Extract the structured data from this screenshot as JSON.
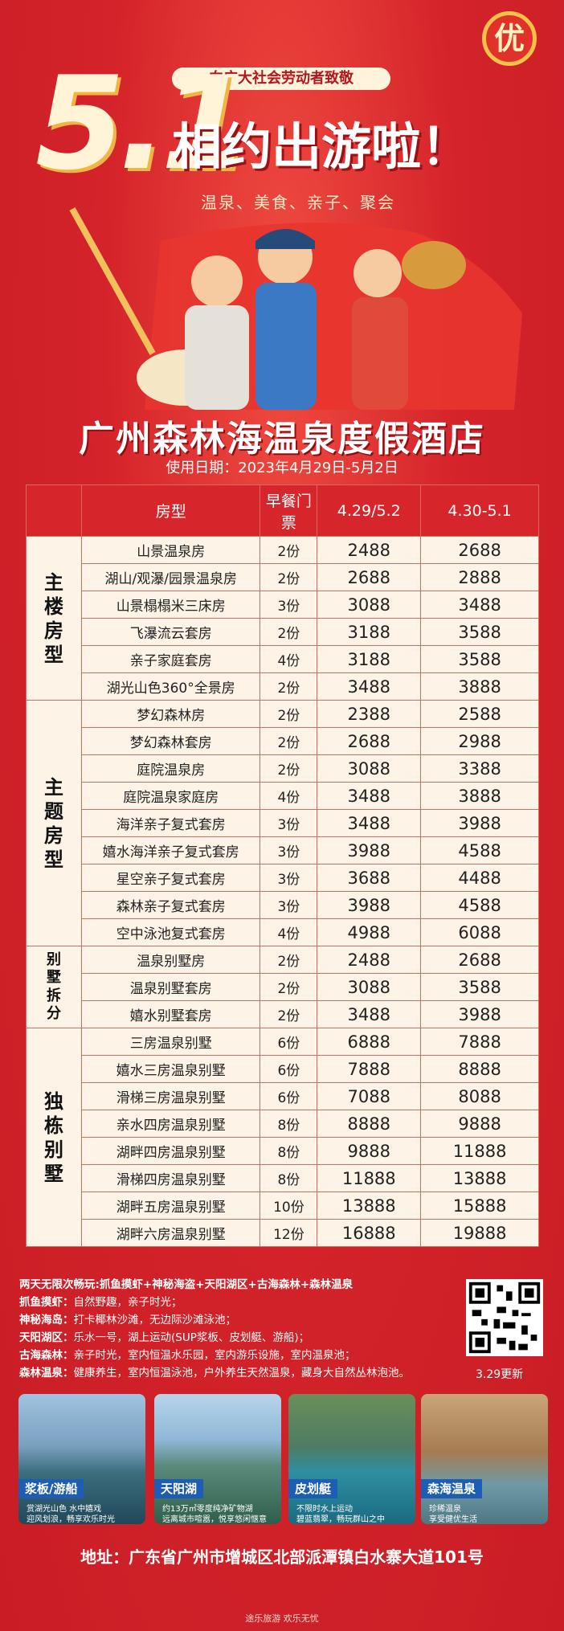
{
  "header": {
    "badge": "优",
    "tagline": "向广大社会劳动者致敬",
    "title_number": "5.1",
    "title_text": "相约出游啦！",
    "subtitle": "温泉、美食、亲子、聚会",
    "hotel": "广州森林海温泉度假酒店",
    "dates": "使用日期：2023年4月29日-5月2日"
  },
  "table": {
    "headers": [
      "房型",
      "早餐门票",
      "4.29/5.2",
      "4.30-5.1"
    ],
    "groups": [
      {
        "name": "主楼房型",
        "rows": [
          [
            "山景温泉房",
            "2份",
            2488,
            2688
          ],
          [
            "湖山/观瀑/园景温泉房",
            "2份",
            2688,
            2888
          ],
          [
            "山景榻榻米三床房",
            "3份",
            3088,
            3488
          ],
          [
            "飞瀑流云套房",
            "2份",
            3188,
            3588
          ],
          [
            "亲子家庭套房",
            "4份",
            3188,
            3588
          ],
          [
            "湖光山色360°全景房",
            "2份",
            3488,
            3888
          ]
        ]
      },
      {
        "name": "主题房型",
        "rows": [
          [
            "梦幻森林房",
            "2份",
            2388,
            2588
          ],
          [
            "梦幻森林套房",
            "2份",
            2688,
            2988
          ],
          [
            "庭院温泉房",
            "2份",
            3088,
            3388
          ],
          [
            "庭院温泉家庭房",
            "4份",
            3488,
            3888
          ],
          [
            "海洋亲子复式套房",
            "3份",
            3488,
            3988
          ],
          [
            "嬉水海洋亲子复式套房",
            "3份",
            3988,
            4588
          ],
          [
            "星空亲子复式套房",
            "3份",
            3688,
            4488
          ],
          [
            "森林亲子复式套房",
            "3份",
            3988,
            4588
          ],
          [
            "空中泳池复式套房",
            "4份",
            4988,
            6088
          ]
        ]
      },
      {
        "name": "别墅拆分",
        "rows": [
          [
            "温泉别墅房",
            "2份",
            2488,
            2688
          ],
          [
            "温泉别墅套房",
            "2份",
            3088,
            3588
          ],
          [
            "嬉水别墅套房",
            "2份",
            3488,
            3988
          ]
        ]
      },
      {
        "name": "独栋别墅",
        "rows": [
          [
            "三房温泉别墅",
            "6份",
            6888,
            7888
          ],
          [
            "嬉水三房温泉别墅",
            "6份",
            7888,
            8888
          ],
          [
            "滑梯三房温泉别墅",
            "6份",
            7088,
            8088
          ],
          [
            "亲水四房温泉别墅",
            "8份",
            8888,
            9888
          ],
          [
            "湖畔四房温泉别墅",
            "8份",
            9888,
            11888
          ],
          [
            "滑梯四房温泉别墅",
            "8份",
            11888,
            13888
          ],
          [
            "湖畔五房温泉别墅",
            "10份",
            13888,
            15888
          ],
          [
            "湖畔六房温泉别墅",
            "12份",
            16888,
            19888
          ]
        ]
      }
    ]
  },
  "notes": {
    "heading": "两天无限次畅玩:抓鱼摸虾+神秘海盗+天阳湖区+古海森林+森林温泉",
    "items": [
      {
        "label": "抓鱼摸虾：",
        "text": "自然野趣，亲子时光；"
      },
      {
        "label": "神秘海岛：",
        "text": "打卡椰林沙滩，无边际沙滩泳池；"
      },
      {
        "label": "天阳湖区：",
        "text": "乐水一号，湖上运动(SUP浆板、皮划艇、游船)；"
      },
      {
        "label": "古海森林：",
        "text": "亲子时光，室内恒温水乐园，室内游乐设施，室内温泉池；"
      },
      {
        "label": "森林温泉：",
        "text": "健康养生，室内恒温泳池，户外养生天然温泉，藏身大自然丛林泡池。"
      }
    ],
    "update": "3.29更新"
  },
  "photos": [
    {
      "title": "浆板/游船",
      "lines": [
        "赏湖光山色 水中嬉戏",
        "迎风划浪，畅享欢乐时光"
      ]
    },
    {
      "title": "天阳湖",
      "lines": [
        "约13万㎡零度纯净矿物湖",
        "远离城市喧嚣，悦享悠闲惬意"
      ]
    },
    {
      "title": "皮划艇",
      "lines": [
        "不限时水上运动",
        "碧蓝翡翠，畅玩群山之中"
      ]
    },
    {
      "title": "森海温泉",
      "lines": [
        "珍稀温泉",
        "享受健优生活"
      ]
    }
  ],
  "address": "地址：广东省广州市增城区北部派潭镇白水寨大道101号",
  "footer": "途乐旅游  欢乐无忧"
}
